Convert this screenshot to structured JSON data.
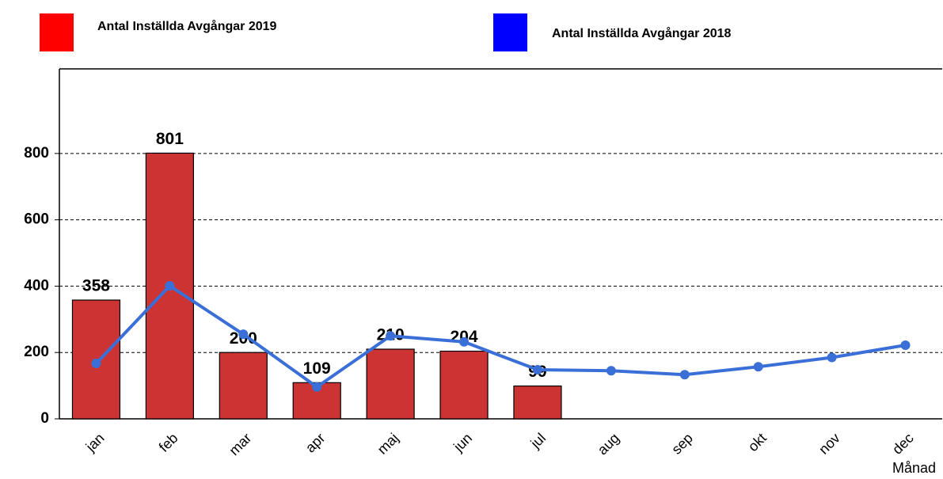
{
  "chart_data": {
    "type": "bar-line",
    "x_label": "Månad",
    "categories": [
      "jan",
      "feb",
      "mar",
      "apr",
      "maj",
      "jun",
      "jul",
      "aug",
      "sep",
      "okt",
      "nov",
      "dec"
    ],
    "series": [
      {
        "name": "Antal Inställda Avgångar 2019",
        "type": "bar",
        "color": "#cc3333",
        "legend_color": "#ff0000",
        "values": [
          358,
          801,
          200,
          109,
          210,
          204,
          99,
          null,
          null,
          null,
          null,
          null
        ]
      },
      {
        "name": "Antal Inställda Avgångar 2018",
        "type": "line",
        "color": "#3a6fd8",
        "legend_color": "#0000ff",
        "values": [
          167,
          401,
          255,
          96,
          250,
          232,
          148,
          145,
          133,
          157,
          185,
          222
        ]
      }
    ],
    "ylim": [
      0,
      1055
    ],
    "yticks": [
      0,
      200,
      400,
      600,
      800
    ],
    "grid": true
  }
}
